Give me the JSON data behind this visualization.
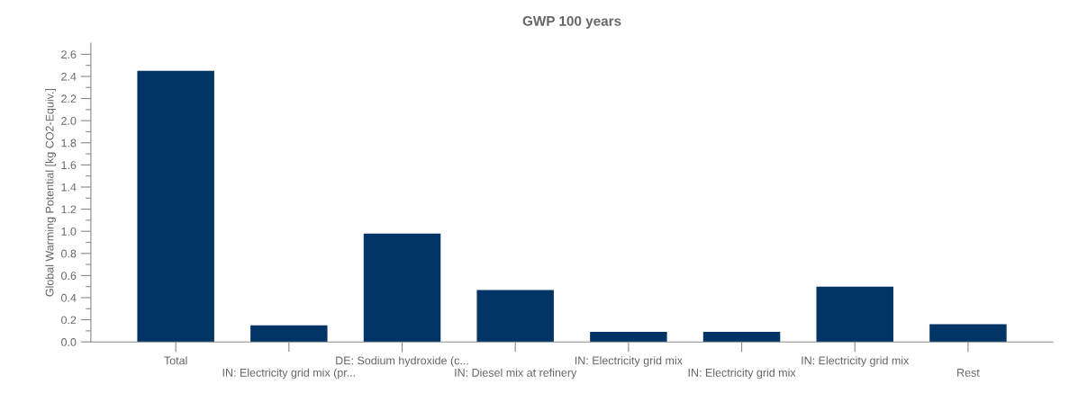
{
  "chart_data": {
    "type": "bar",
    "title": "GWP 100 years",
    "ylabel": "Global Warming Potential [kg CO2-Equiv.]",
    "categories": [
      "Total",
      "IN: Electricity grid mix (pr...",
      "DE: Sodium hydroxide (c...",
      "IN: Diesel mix at refinery",
      "IN: Electricity grid mix",
      "IN: Electricity grid mix",
      "IN: Electricity grid mix",
      "Rest"
    ],
    "values": [
      2.45,
      0.15,
      0.98,
      0.47,
      0.09,
      0.09,
      0.5,
      0.16
    ],
    "color": "#023566",
    "ylim": [
      0,
      2.7
    ],
    "yticks": [
      {
        "value": 0,
        "label": "0.0"
      },
      {
        "value": 0.1,
        "label": null
      },
      0.2,
      {
        "value": 0.3,
        "label": null
      },
      0.4,
      {
        "value": 0.5,
        "label": null
      },
      0.6,
      {
        "value": 0.7,
        "label": null
      },
      0.8,
      {
        "value": 0.9,
        "label": null
      },
      {
        "value": 1.0,
        "label": "1.0"
      },
      {
        "value": 1.1,
        "label": null
      },
      1.2,
      {
        "value": 1.3,
        "label": null
      },
      1.4,
      {
        "value": 1.5,
        "label": null
      },
      1.6,
      {
        "value": 1.7,
        "label": null
      },
      1.8,
      {
        "value": 1.9,
        "label": null
      },
      {
        "value": 2.0,
        "label": "2.0"
      },
      {
        "value": 2.1,
        "label": null
      },
      2.2,
      {
        "value": 2.3,
        "label": null
      },
      2.4,
      {
        "value": 2.5,
        "label": null
      },
      2.6
    ],
    "grid": false,
    "legend": false
  }
}
